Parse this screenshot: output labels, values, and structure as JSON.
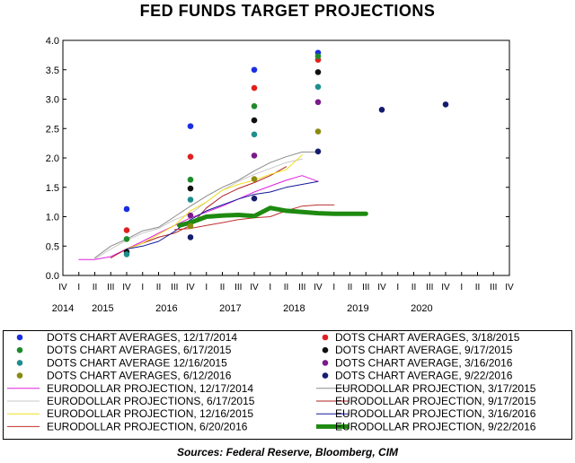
{
  "chart_data": {
    "type": "scatter",
    "title": "FED FUNDS TARGET PROJECTIONS",
    "ylim": [
      0,
      4
    ],
    "yticks": [
      "0.0",
      "0.5",
      "1.0",
      "1.5",
      "2.0",
      "2.5",
      "3.0",
      "3.5",
      "4.0"
    ],
    "quarter_labels": [
      "IV",
      "I",
      "II",
      "III",
      "IV",
      "I",
      "II",
      "III",
      "IV",
      "I",
      "II",
      "III",
      "IV",
      "I",
      "II",
      "III",
      "IV",
      "I",
      "II",
      "III",
      "IV",
      "I",
      "II",
      "III",
      "IV",
      "I",
      "II",
      "III",
      "IV"
    ],
    "year_labels": [
      {
        "label": "2014",
        "q": 0
      },
      {
        "label": "2015",
        "q": 2.5
      },
      {
        "label": "2016",
        "q": 6.5
      },
      {
        "label": "2017",
        "q": 10.5
      },
      {
        "label": "2018",
        "q": 14.5
      },
      {
        "label": "2019",
        "q": 18.5
      },
      {
        "label": "2020",
        "q": 22.5
      }
    ],
    "dots": [
      {
        "name": "DOTS CHART AVERAGES, 12/17/2014",
        "color": "#1a2ee0",
        "points": [
          [
            4,
            1.13
          ],
          [
            8,
            2.54
          ],
          [
            12,
            3.5
          ],
          [
            16,
            3.79
          ]
        ]
      },
      {
        "name": "DOTS CHART AVERAGES, 3/18/2015",
        "color": "#e02020",
        "points": [
          [
            4,
            0.77
          ],
          [
            8,
            2.02
          ],
          [
            12,
            3.19
          ],
          [
            16,
            3.67
          ]
        ]
      },
      {
        "name": "DOTS CHART AVERAGES, 6/17/2015",
        "color": "#1e8a2a",
        "points": [
          [
            4,
            0.62
          ],
          [
            8,
            1.63
          ],
          [
            12,
            2.88
          ],
          [
            16,
            3.73
          ]
        ]
      },
      {
        "name": "DOTS CHART AVERAGE, 9/17/2015",
        "color": "#101010",
        "points": [
          [
            4,
            0.4
          ],
          [
            8,
            1.48
          ],
          [
            12,
            2.64
          ],
          [
            16,
            3.46
          ]
        ]
      },
      {
        "name": "DOTS CHART AVERAGE 12/16/2015",
        "color": "#1e8e8e",
        "points": [
          [
            4,
            0.36
          ],
          [
            8,
            1.29
          ],
          [
            12,
            2.4
          ],
          [
            16,
            3.21
          ]
        ]
      },
      {
        "name": "DOTS CHART AVERAGE, 3/16/2016",
        "color": "#7a1a8a",
        "points": [
          [
            8,
            1.02
          ],
          [
            12,
            2.04
          ],
          [
            16,
            2.95
          ]
        ]
      },
      {
        "name": "DOTS CHART AVERAGES, 6/12/2016",
        "color": "#8a8a10",
        "points": [
          [
            8,
            0.84
          ],
          [
            12,
            1.64
          ],
          [
            16,
            2.45
          ]
        ]
      },
      {
        "name": "DOTS CHART AVERAGE, 9/22/2016",
        "color": "#141c6e",
        "points": [
          [
            8,
            0.65
          ],
          [
            12,
            1.31
          ],
          [
            16,
            2.11
          ],
          [
            20,
            2.82
          ],
          [
            24,
            2.91
          ]
        ]
      }
    ],
    "lines": [
      {
        "name": "EURODOLLAR PROJECTION, 12/17/2014",
        "color": "#e020e0",
        "width": 1,
        "points": [
          [
            1,
            0.27
          ],
          [
            2,
            0.27
          ],
          [
            3,
            0.32
          ],
          [
            4,
            0.45
          ],
          [
            5,
            0.58
          ],
          [
            6,
            0.72
          ],
          [
            7,
            0.85
          ],
          [
            8,
            0.98
          ],
          [
            9,
            1.08
          ],
          [
            10,
            1.18
          ],
          [
            11,
            1.3
          ],
          [
            12,
            1.42
          ],
          [
            13,
            1.52
          ],
          [
            14,
            1.62
          ],
          [
            15,
            1.7
          ],
          [
            16,
            1.6
          ]
        ]
      },
      {
        "name": "EURODOLLAR PROJECTION, 3/17/2015",
        "color": "#8c8c8c",
        "width": 1,
        "points": [
          [
            2,
            0.3
          ],
          [
            3,
            0.5
          ],
          [
            4,
            0.62
          ],
          [
            5,
            0.76
          ],
          [
            6,
            0.82
          ],
          [
            7,
            1.0
          ],
          [
            8,
            1.18
          ],
          [
            9,
            1.35
          ],
          [
            10,
            1.5
          ],
          [
            11,
            1.62
          ],
          [
            12,
            1.78
          ],
          [
            13,
            1.92
          ],
          [
            14,
            2.02
          ],
          [
            15,
            2.1
          ],
          [
            16,
            2.1
          ]
        ]
      },
      {
        "name": "EURODOLLAR PROJECTIONS, 6/17/2015",
        "color": "#c8c8c8",
        "width": 1,
        "points": [
          [
            2,
            0.28
          ],
          [
            3,
            0.45
          ],
          [
            4,
            0.6
          ],
          [
            5,
            0.72
          ],
          [
            6,
            0.8
          ],
          [
            7,
            0.95
          ],
          [
            8,
            1.05
          ],
          [
            9,
            1.25
          ],
          [
            10,
            1.45
          ],
          [
            11,
            1.6
          ],
          [
            12,
            1.72
          ],
          [
            13,
            1.82
          ],
          [
            14,
            1.92
          ],
          [
            15,
            1.98
          ]
        ]
      },
      {
        "name": "EURODOLLAR PROJECTION, 9/17/2015",
        "color": "#b02020",
        "width": 1,
        "points": [
          [
            3,
            0.3
          ],
          [
            4,
            0.45
          ],
          [
            5,
            0.55
          ],
          [
            6,
            0.65
          ],
          [
            7,
            0.72
          ],
          [
            8,
            0.85
          ],
          [
            9,
            1.15
          ],
          [
            10,
            1.35
          ],
          [
            11,
            1.48
          ],
          [
            12,
            1.58
          ],
          [
            13,
            1.7
          ],
          [
            14,
            1.85
          ]
        ]
      },
      {
        "name": "EURODOLLAR PROJECTION, 12/16/2015",
        "color": "#f0e020",
        "width": 1,
        "points": [
          [
            4,
            0.45
          ],
          [
            5,
            0.55
          ],
          [
            6,
            0.7
          ],
          [
            7,
            0.85
          ],
          [
            8,
            1.1
          ],
          [
            9,
            1.25
          ],
          [
            10,
            1.45
          ],
          [
            11,
            1.55
          ],
          [
            12,
            1.62
          ],
          [
            13,
            1.72
          ],
          [
            14,
            1.8
          ],
          [
            15,
            2.05
          ]
        ]
      },
      {
        "name": "EURODOLLAR PROJECTION, 3/16/2016",
        "color": "#101898",
        "width": 1,
        "points": [
          [
            4,
            0.45
          ],
          [
            5,
            0.5
          ],
          [
            6,
            0.58
          ],
          [
            7,
            0.75
          ],
          [
            8,
            0.95
          ],
          [
            9,
            1.1
          ],
          [
            10,
            1.2
          ],
          [
            11,
            1.3
          ],
          [
            12,
            1.38
          ],
          [
            13,
            1.42
          ],
          [
            14,
            1.5
          ],
          [
            15,
            1.55
          ],
          [
            16,
            1.6
          ]
        ]
      },
      {
        "name": "EURODOLLAR PROJECTION, 6/20/2016",
        "color": "#c03030",
        "width": 1,
        "points": [
          [
            7,
            0.78
          ],
          [
            8,
            0.8
          ],
          [
            9,
            0.85
          ],
          [
            10,
            0.9
          ],
          [
            11,
            0.95
          ],
          [
            12,
            0.98
          ],
          [
            13,
            1.0
          ],
          [
            14,
            1.1
          ],
          [
            15,
            1.18
          ],
          [
            16,
            1.2
          ],
          [
            17,
            1.2
          ]
        ]
      },
      {
        "name": "EURODOLLAR PROJECTION, 9/22/2016",
        "color": "#1e8a10",
        "width": 5,
        "points": [
          [
            7.3,
            0.85
          ],
          [
            8,
            0.9
          ],
          [
            9,
            1.0
          ],
          [
            10,
            1.02
          ],
          [
            11,
            1.03
          ],
          [
            12,
            1.01
          ],
          [
            13,
            1.15
          ],
          [
            14,
            1.1
          ],
          [
            15,
            1.08
          ],
          [
            16,
            1.06
          ],
          [
            17,
            1.05
          ],
          [
            18,
            1.05
          ],
          [
            19,
            1.05
          ]
        ]
      }
    ],
    "source": "Sources:  Federal Reserve, Bloomberg, CIM"
  }
}
